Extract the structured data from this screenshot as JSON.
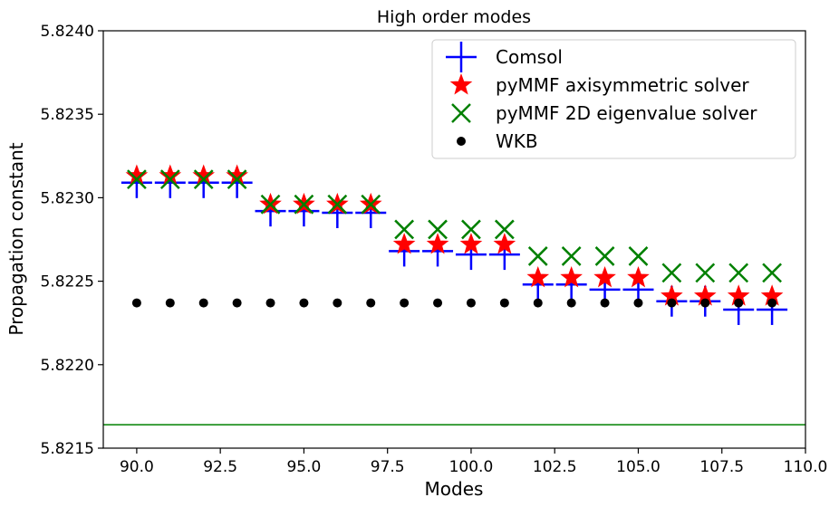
{
  "chart_data": {
    "type": "scatter",
    "title": "High order modes",
    "xlabel": "Modes",
    "ylabel": "Propagation constant",
    "xlim": [
      89,
      110
    ],
    "ylim": [
      5.8215,
      5.824
    ],
    "x_ticks": [
      90.0,
      92.5,
      95.0,
      97.5,
      100.0,
      102.5,
      105.0,
      107.5,
      110.0
    ],
    "x_tick_labels": [
      "90.0",
      "92.5",
      "95.0",
      "97.5",
      "100.0",
      "102.5",
      "105.0",
      "107.5",
      "110.0"
    ],
    "y_ticks": [
      5.8215,
      5.822,
      5.8225,
      5.823,
      5.8235,
      5.824
    ],
    "y_tick_labels": [
      "5.8215",
      "5.8220",
      "5.8225",
      "5.8230",
      "5.8235",
      "5.8240"
    ],
    "grid": false,
    "legend_position": "top-right",
    "x": [
      90,
      91,
      92,
      93,
      94,
      95,
      96,
      97,
      98,
      99,
      100,
      101,
      102,
      103,
      104,
      105,
      106,
      107,
      108,
      109
    ],
    "series": [
      {
        "name": "Comsol",
        "marker": "plus",
        "color": "#0000ff",
        "values": [
          5.82309,
          5.82309,
          5.82309,
          5.82309,
          5.82292,
          5.82292,
          5.82291,
          5.82291,
          5.82268,
          5.82268,
          5.82266,
          5.82266,
          5.82248,
          5.82248,
          5.82245,
          5.82245,
          5.82238,
          5.82238,
          5.82233,
          5.82233
        ]
      },
      {
        "name": "pyMMF axisymmetric solver",
        "marker": "star",
        "color": "#ff0000",
        "values": [
          5.82313,
          5.82313,
          5.82313,
          5.82313,
          5.82296,
          5.82296,
          5.82296,
          5.82296,
          5.82272,
          5.82272,
          5.82272,
          5.82272,
          5.82252,
          5.82252,
          5.82252,
          5.82252,
          5.82241,
          5.82241,
          5.82241,
          5.82241
        ]
      },
      {
        "name": "pyMMF 2D eigenvalue solver",
        "marker": "x",
        "color": "#008000",
        "values": [
          5.82311,
          5.82311,
          5.82311,
          5.82311,
          5.82296,
          5.82296,
          5.82296,
          5.82296,
          5.82281,
          5.82281,
          5.82281,
          5.82281,
          5.82265,
          5.82265,
          5.82265,
          5.82265,
          5.82255,
          5.82255,
          5.82255,
          5.82255
        ]
      },
      {
        "name": "WKB",
        "marker": "dot",
        "color": "#000000",
        "values": [
          5.82237,
          5.82237,
          5.82237,
          5.82237,
          5.82237,
          5.82237,
          5.82237,
          5.82237,
          5.82237,
          5.82237,
          5.82237,
          5.82237,
          5.82237,
          5.82237,
          5.82237,
          5.82237,
          5.82237,
          5.82237,
          5.82237,
          5.82237
        ]
      }
    ],
    "hline": {
      "y": 5.82164,
      "color": "#008000"
    }
  }
}
